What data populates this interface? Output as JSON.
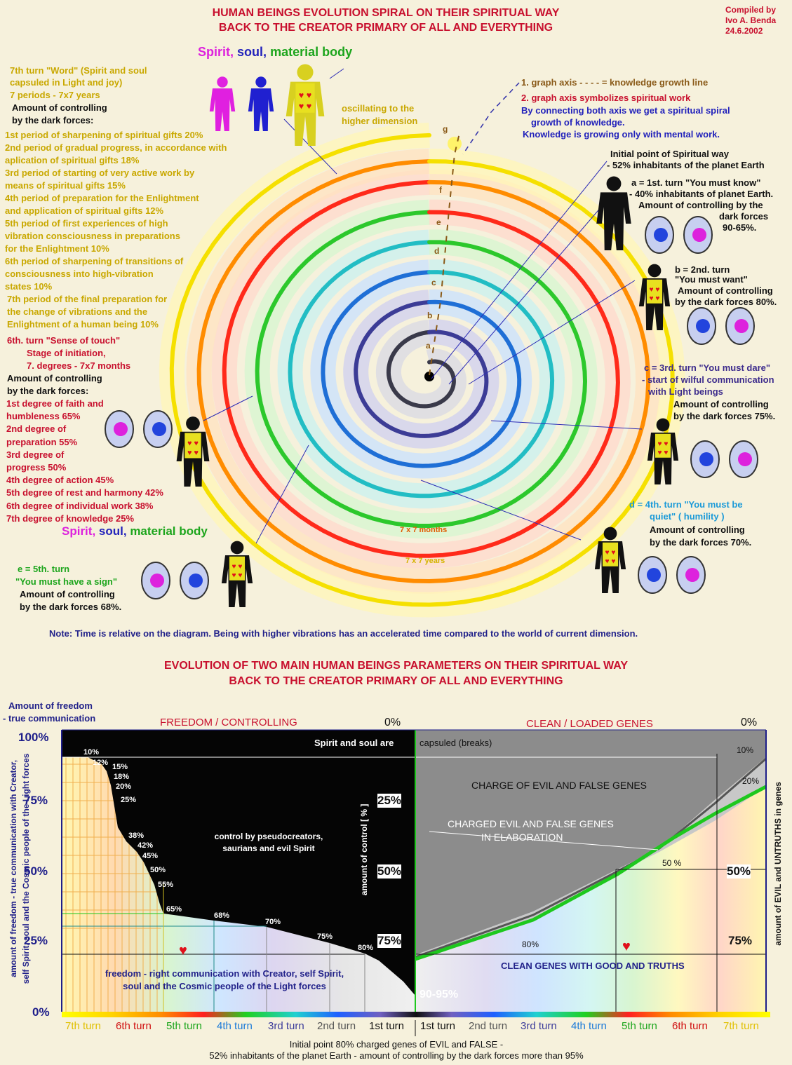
{
  "title": {
    "line1": "HUMAN BEINGS EVOLUTION SPIRAL ON THEIR SPIRITUAL WAY",
    "line2": "BACK TO THE CREATOR PRIMARY OF ALL AND EVERYTHING"
  },
  "credit": {
    "line1": "Compiled by",
    "line2": "Ivo A. Benda",
    "line3": "24.6.2002"
  },
  "top_figure": {
    "words": [
      "Spirit,",
      "soul,",
      "material body"
    ],
    "turn7_lines": [
      "7th turn \"Word\" (Spirit and soul",
      "capsuled in Light and joy)",
      "7 periods - 7x7 years"
    ],
    "control_lines": [
      "Amount of controlling",
      "by the dark forces:"
    ],
    "periods": [
      "1st period of sharpening of spiritual gifts  20%",
      "2nd period of gradual progress, in accordance with",
      "aplication of spiritual gifts  18%",
      "3rd period of starting of very active work by",
      "means of spiritual gifts  15%",
      "4th period of preparation for the Enlightment",
      "and application of spiritual gifts  12%",
      "5th period of first experiences of high",
      "vibration consciousness in preparations",
      "for the Enlightment  10%",
      "6th period of sharpening of transitions of",
      "consciousness into high-vibration",
      "states  10%",
      "7th period of the final preparation for",
      " the change of vibrations and the",
      " Enlightment of a human being  10%"
    ]
  },
  "turn6": {
    "lines": [
      "6th. turn \"Sense of touch\"",
      "Stage of initiation,",
      "7. degrees - 7x7 months"
    ],
    "control_lines": [
      "Amount of controlling",
      "by the dark forces:"
    ],
    "degrees": [
      "1st degree of faith and",
      "humbleness 65%",
      "2nd degree of",
      "preparation 55%",
      "3rd degree of",
      "progress 50%",
      "4th degree of action 45%",
      "5th degree of rest and harmony 42%",
      "6th degree of individual work 38%",
      "7th degree of knowledge 25%"
    ]
  },
  "bottom_left_figure": {
    "words": [
      "Spirit,",
      "soul,",
      "material body"
    ]
  },
  "turn5": {
    "lines": [
      "e =  5th. turn",
      "\"You must  have a sign\"",
      "Amount of controlling",
      "by the dark forces 68%."
    ]
  },
  "oscillating": [
    "oscillating to the",
    "higher dimension"
  ],
  "axis_notes": [
    "1. graph axis - - - -  = knowledge growth line",
    "2. graph axis  symbolizes spiritual work",
    "By connecting both axis we get a spiritual spiral",
    "growth of knowledge.",
    "Knowledge is growing only with mental work."
  ],
  "initial_point": [
    "Initial point of Spiritual way",
    "- 52% inhabitants of the planet Earth"
  ],
  "turn1": [
    "a = 1st.  turn \"You must know\"",
    "- 40% inhabitants of planet Earth.",
    "Amount of controlling by the",
    "dark forces",
    "90-65%."
  ],
  "turn2": [
    "b = 2nd. turn",
    "\"You must want\"",
    "Amount of controlling",
    "by the dark forces 80%."
  ],
  "turn3": [
    "c = 3rd. turn \"You must dare\"",
    "- start of wilful communication",
    "with Light beings",
    "Amount of controlling",
    "by the dark forces 75%."
  ],
  "turn4": [
    "d = 4th. turn \"You must be",
    "quiet\" ( humility )",
    "Amount of controlling",
    "by the dark forces 70%."
  ],
  "spiral_letters": [
    "a",
    "b",
    "c",
    "d",
    "e",
    "f",
    "g"
  ],
  "spiral_labels": [
    "7 x 7 months",
    "7 x 7 years"
  ],
  "note": "Note:  Time is relative on the diagram. Being with higher vibrations has an accelerated time compared to the world of current  dimension.",
  "bottom": {
    "title1": "EVOLUTION OF TWO MAIN HUMAN BEINGS PARAMETERS ON THEIR SPIRITUAL WAY",
    "title2": "BACK TO THE CREATOR  PRIMARY OF ALL AND EVERYTHING",
    "freedom_head": [
      "Amount of freedom",
      "- true communication"
    ],
    "left_panel_title": "FREEDOM / CONTROLLING",
    "right_panel_title": "CLEAN / LOADED GENES",
    "zero_left": "0%",
    "zero_right": "0%",
    "y_ticks_left": [
      "100%",
      "75%",
      "50%",
      "25%",
      "0%"
    ],
    "y_ticks_center": [
      "25%",
      "50%",
      "75%"
    ],
    "y_ticks_right": [
      "50%",
      "75%"
    ],
    "left_axis_label": [
      "amount of freedom - true communication with Creator,",
      "self Spirit, soul and the Cosmic people of the Light forces"
    ],
    "center_axis_label": "amount of control [ % ]",
    "right_axis_label": "amount of EVIL and UNTRUTHS in genes",
    "capsuled_left": "Spirit and soul are",
    "capsuled_right": "capsuled (breaks)",
    "control_text": [
      "control by pseudocreators,",
      "saurians and evil Spirit"
    ],
    "freedom_text": [
      "freedom - right communication with Creator, self Spirit,",
      "soul and the Cosmic people of the Light forces"
    ],
    "charge_text": "CHARGE OF EVIL AND FALSE GENES",
    "charged_text": [
      "CHARGED EVIL AND FALSE GENES",
      "IN ELABORATION"
    ],
    "clean_text": "CLEAN GENES WITH GOOD AND TRUTHS",
    "value_90_95": "90-95%",
    "turns_left": [
      "7th turn",
      "6th turn",
      "5th turn",
      "4th turn",
      "3rd turn",
      "2nd turn",
      "1st turn"
    ],
    "turns_right": [
      "1st turn",
      "2nd turn",
      "3rd turn",
      "4th turn",
      "5th turn",
      "6th turn",
      "7th turn"
    ],
    "initial_point": [
      "Initial point 80% charged genes of EVIL and FALSE -",
      "52% inhabitants of the planet Earth - amount of controlling  by the dark forces more than 95%"
    ]
  },
  "chart_data": {
    "type": "area",
    "series": [
      {
        "name": "",
        "x": [
          "1st turn",
          "2nd turn",
          "3rd turn",
          "4th turn",
          "5th turn",
          "6th turn",
          "7th turn"
        ],
        "control_labels": [
          "80%",
          "75%",
          "70%",
          "68%",
          "65%",
          "55%",
          "50%",
          "45%",
          "42%",
          "38%",
          "25%",
          "20%",
          "18%",
          "15%",
          "12%",
          "10%"
        ]
      },
      {
        "name": "",
        "labels": [
          "10%",
          "20%",
          "50 %",
          "80%"
        ]
      }
    ],
    "ylim": [
      0,
      100
    ]
  },
  "colors": {
    "title_red": "#c8102e",
    "dark_panel": "#050505",
    "gray_panel": "#8c8c8c",
    "green_line": "#1ec81e",
    "axis_blue": "#1e1e8a"
  }
}
